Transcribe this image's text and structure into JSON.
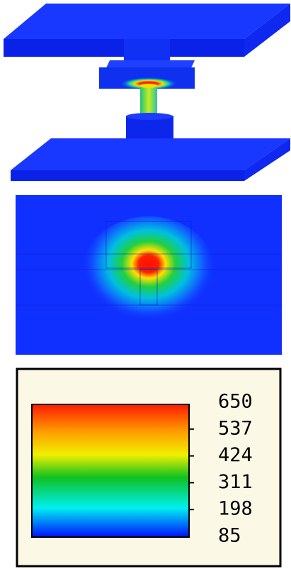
{
  "legend": {
    "ticks": [
      650,
      537,
      424,
      311,
      198,
      85
    ]
  }
}
